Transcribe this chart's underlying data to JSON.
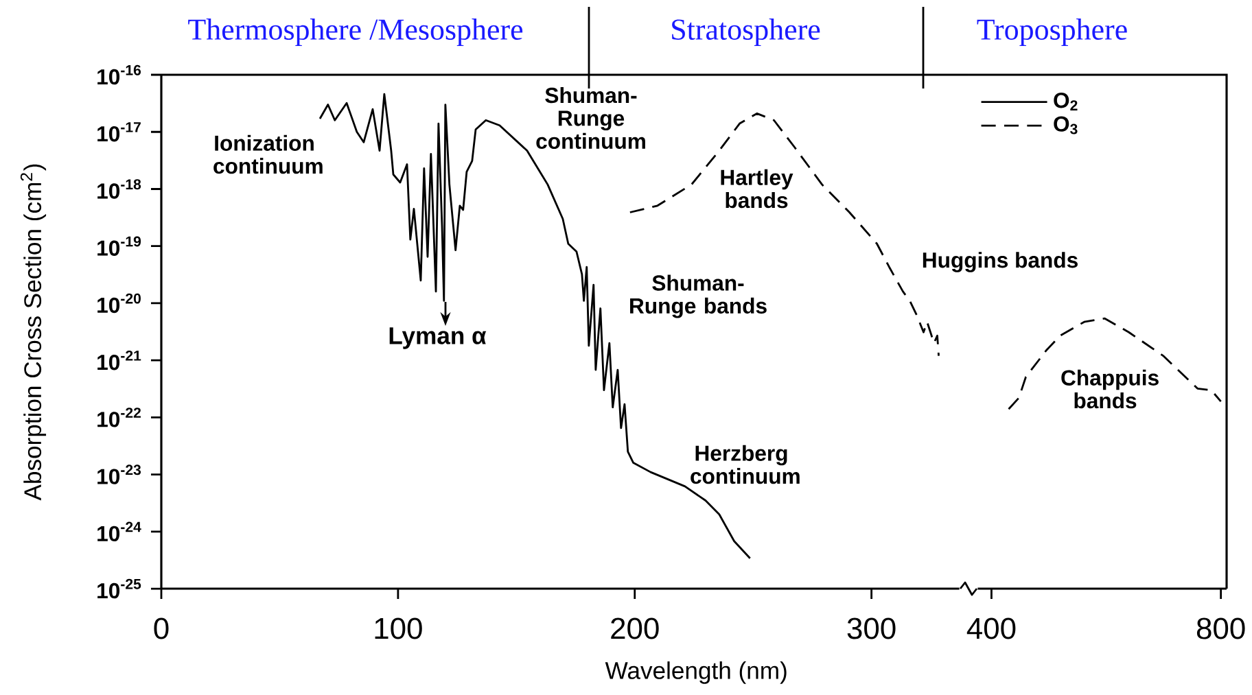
{
  "chart_data": [
    {
      "type": "line",
      "xlabel": "Wavelength (nm)",
      "ylabel": "Absorption Cross Section (cm$^{2}$)",
      "log": "y",
      "legend": "top right",
      "xlim": [
        0,
        341
      ],
      "xticks": [
        0,
        100,
        200,
        300
      ],
      "ylim": [
        1e-25,
        1e-16
      ],
      "yticks": [
        {
          "value": 1e-25,
          "label": "10$^{-25}$"
        },
        {
          "value": 1e-24,
          "label": "10$^{-24}$"
        },
        {
          "value": 1e-23,
          "label": "10$^{-23}$"
        },
        {
          "value": 1e-22,
          "label": "10$^{-22}$"
        },
        {
          "value": 1e-21,
          "label": "10$^{-21}$"
        },
        {
          "value": 1e-20,
          "label": "10$^{-20}$"
        },
        {
          "value": 1e-19,
          "label": "10$^{-19}$"
        },
        {
          "value": 1e-18,
          "label": "10$^{-18}$"
        },
        {
          "value": 1e-17,
          "label": "10$^{-17}$"
        },
        {
          "value": 1e-16,
          "label": "10$^{-16}$"
        }
      ],
      "annotations": [
        "Thermosphere /Mesosphere",
        "Stratosphere",
        "Troposphere",
        "Ionization continuum",
        "Lyman α",
        "Shuman-Runge continuum",
        "Hartley bands",
        "Shuman-Runge bands",
        "Herzberg continuum",
        "Huggins bands",
        "Chappuis bands"
      ],
      "series": [
        {
          "name": "O$_{2}$",
          "color": "#000000",
          "line_style": "solid",
          "x": [
            67,
            70.4,
            73.3,
            78.3,
            82.6,
            85.5,
            89.3,
            92.2,
            94.2,
            97.1,
            98,
            100.9,
            103.8,
            105.2,
            106.7,
            109.6,
            111,
            112.5,
            113.9,
            116,
            117.1,
            118.6,
            119.4,
            120,
            121.7,
            124.3,
            126.1,
            127.5,
            129,
            131.3,
            132.8,
            137.1,
            142.9,
            154.5,
            163.2,
            169.6,
            171.9,
            175.4,
            177.7,
            178.5,
            179.7,
            180.6,
            182.6,
            183.5,
            185.5,
            187,
            189.3,
            190.7,
            192.8,
            194.2,
            195.7,
            197.1,
            199.4,
            206.7,
            221.2,
            229.9,
            235.7,
            242,
            248.7
          ],
          "values": [
            1.7e-17,
            3e-17,
            1.6e-17,
            3.2e-17,
            1e-17,
            6.6e-18,
            2.5e-17,
            4.7e-18,
            4.6e-17,
            4.7e-18,
            1.8e-18,
            1.3e-18,
            2.7e-18,
            1.3e-19,
            4.5e-19,
            2.5e-20,
            2.3e-18,
            6.5e-20,
            4.1e-18,
            1.6e-20,
            1.4e-17,
            2.2e-19,
            1.1e-20,
            3e-17,
            1.2e-18,
            8.5e-20,
            5.1e-19,
            4.3e-19,
            2e-18,
            3.1e-18,
            1.1e-17,
            1.6e-17,
            1.3e-17,
            4.7e-18,
            1.2e-18,
            3e-19,
            1.1e-19,
            8e-20,
            3.2e-20,
            1.1e-20,
            4.3e-20,
            1.8e-21,
            2.1e-20,
            6.8e-22,
            8.1e-21,
            3e-22,
            2e-21,
            1.5e-22,
            6.8e-22,
            6.5e-23,
            1.7e-22,
            2.5e-23,
            1.6e-23,
            1.1e-23,
            6.2e-24,
            3.5e-24,
            2e-24,
            6.8e-25,
            3.4e-25
          ]
        },
        {
          "name": "O$_{3}$",
          "color": "#000000",
          "line_style": "dashed",
          "x": [
            198,
            209.6,
            224,
            235.7,
            244.3,
            251.6,
            258.8,
            267.5,
            279.1,
            290.7,
            302.3,
            307.5,
            313.3,
            316.2,
            319.1,
            322.0,
            323.5,
            326.4,
            327.8,
            328.4
          ],
          "values": [
            3.9e-19,
            5.1e-19,
            1.2e-18,
            4.7e-18,
            1.4e-17,
            2.1e-17,
            1.6e-17,
            5.4e-18,
            1.2e-18,
            3.9e-19,
            1.1e-19,
            4.3e-20,
            1.6e-20,
            1.1e-20,
            6.2e-21,
            3.1e-21,
            4.7e-21,
            2e-21,
            2.7e-21,
            1.2e-21
          ]
        }
      ]
    },
    {
      "type": "line",
      "log": "y",
      "tick_labels": "x",
      "xlim": [
        360,
        810
      ],
      "xticks": [
        400,
        800
      ],
      "ylim": [
        1e-25,
        1e-16
      ],
      "series": [
        {
          "color": "#000000",
          "line_style": "dashed",
          "x": [
            430,
            447.9,
            459.9,
            495.8,
            519.8,
            561.7,
            597.6,
            639.5,
            699.4,
            759.3,
            783.2,
            800
          ],
          "values": [
            1.4e-22,
            2.2e-22,
            5.1e-22,
            1.5e-21,
            2.7e-21,
            4.7e-21,
            5.4e-21,
            3.1e-21,
            1.2e-21,
            3.2e-22,
            3e-22,
            1.9e-22
          ]
        }
      ]
    }
  ]
}
